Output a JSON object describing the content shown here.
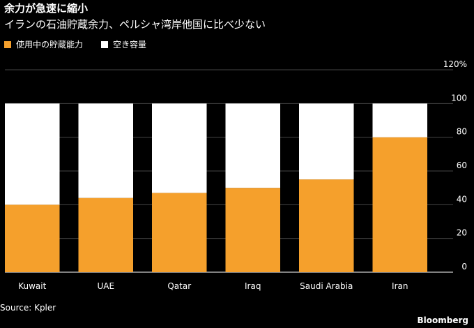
{
  "title": "余力が急速に縮小",
  "subtitle": "イランの石油貯蔵余力、ペルシャ湾岸他国に比べ少ない",
  "legend": [
    {
      "label": "使用中の貯蔵能力",
      "color": "#f5a02c"
    },
    {
      "label": "空き容量",
      "color": "#ffffff"
    }
  ],
  "source": "Source: Kpler",
  "brand": "Bloomberg",
  "chart_data": {
    "type": "bar",
    "stacked": true,
    "categories": [
      "Kuwait",
      "UAE",
      "Qatar",
      "Iraq",
      "Saudi Arabia",
      "Iran"
    ],
    "series": [
      {
        "name": "使用中の貯蔵能力",
        "color": "#f5a02c",
        "values": [
          40,
          44,
          47,
          50,
          55,
          80
        ]
      },
      {
        "name": "空き容量",
        "color": "#ffffff",
        "values": [
          60,
          56,
          53,
          50,
          45,
          20
        ]
      }
    ],
    "ylim": [
      0,
      120
    ],
    "yticks": [
      0,
      20,
      40,
      60,
      80,
      100,
      120
    ],
    "ytick_labels": [
      "0",
      "20",
      "40",
      "60",
      "80",
      "100",
      "120%"
    ],
    "gridlines": true,
    "yaxis_position": "right"
  }
}
